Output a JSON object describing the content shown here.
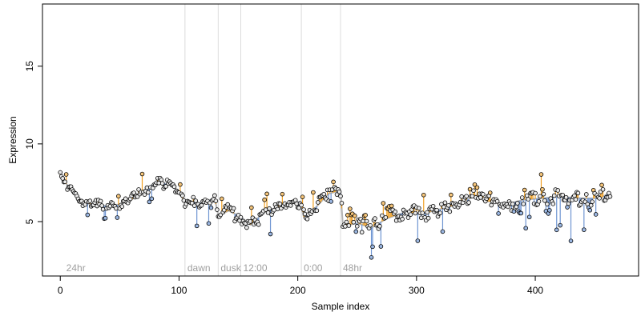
{
  "chart_data": {
    "type": "scatter",
    "title": "",
    "xlabel": "Sample index",
    "ylabel": "Expression",
    "xlim": [
      -15,
      487
    ],
    "ylim": [
      1.5,
      19
    ],
    "x_ticks": [
      0,
      100,
      200,
      300,
      400
    ],
    "y_ticks": [
      5,
      10,
      15
    ],
    "grid": false,
    "legend": "none",
    "colors": {
      "trend_line": "#b4b4b4",
      "above_segment": "#f0a024",
      "below_segment": "#6f95d2",
      "point_high": "#f5c57a",
      "point_mid": "#e9e9e9",
      "point_low": "#9bb7e2",
      "point_stroke": "#000000",
      "vertical_marker": "#dcdcdc",
      "annotation_text": "#9e9e9e"
    },
    "vertical_markers": [
      {
        "x": 105,
        "label": "dawn"
      },
      {
        "x": 133,
        "label": "dusk"
      },
      {
        "x": 152,
        "label": "12:00"
      },
      {
        "x": 203,
        "label": "0:00"
      },
      {
        "x": 236,
        "label": "48hr"
      }
    ],
    "annotations": [
      {
        "x": 3,
        "label": "24hr"
      }
    ],
    "trend_anchors": [
      [
        0,
        8.0
      ],
      [
        3,
        7.6
      ],
      [
        10,
        7.0
      ],
      [
        20,
        6.2
      ],
      [
        35,
        6.0
      ],
      [
        50,
        6.1
      ],
      [
        60,
        6.4
      ],
      [
        70,
        7.0
      ],
      [
        82,
        7.6
      ],
      [
        95,
        7.3
      ],
      [
        105,
        6.3
      ],
      [
        118,
        6.2
      ],
      [
        130,
        6.5
      ],
      [
        133,
        5.4
      ],
      [
        142,
        5.7
      ],
      [
        152,
        5.3
      ],
      [
        160,
        4.8
      ],
      [
        172,
        5.6
      ],
      [
        185,
        6.0
      ],
      [
        202,
        6.3
      ],
      [
        205,
        5.3
      ],
      [
        215,
        5.9
      ],
      [
        226,
        6.8
      ],
      [
        236,
        7.0
      ],
      [
        238,
        4.7
      ],
      [
        250,
        4.9
      ],
      [
        262,
        4.6
      ],
      [
        275,
        5.2
      ],
      [
        290,
        5.6
      ],
      [
        305,
        5.5
      ],
      [
        320,
        5.8
      ],
      [
        335,
        6.1
      ],
      [
        350,
        6.7
      ],
      [
        360,
        6.3
      ],
      [
        375,
        6.1
      ],
      [
        390,
        6.4
      ],
      [
        405,
        6.5
      ],
      [
        420,
        6.6
      ],
      [
        440,
        6.5
      ],
      [
        455,
        6.5
      ],
      [
        463,
        6.9
      ]
    ],
    "noise_amplitude": [
      [
        0,
        0.35
      ],
      [
        100,
        0.45
      ],
      [
        150,
        0.55
      ],
      [
        200,
        0.5
      ],
      [
        236,
        0.9
      ],
      [
        300,
        0.8
      ],
      [
        340,
        0.7
      ],
      [
        400,
        0.85
      ],
      [
        463,
        0.9
      ]
    ],
    "n_points": 464,
    "values_visible_note": ""
  }
}
